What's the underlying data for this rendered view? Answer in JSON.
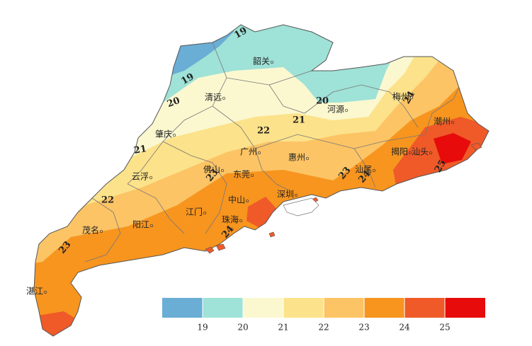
{
  "map": {
    "cities": [
      "韶关",
      "清远",
      "河源",
      "梅州",
      "潮州",
      "肇庆",
      "广州",
      "惠州",
      "揭阳",
      "汕头",
      "云浮",
      "佛山",
      "东莞",
      "汕尾",
      "中山",
      "深圳",
      "江门",
      "珠海",
      "阳江",
      "茂名",
      "湛江"
    ],
    "contour_labels": [
      19,
      19,
      20,
      20,
      21,
      21,
      22,
      22,
      23,
      23,
      23,
      24,
      24,
      24,
      25
    ],
    "legend": {
      "colors": [
        "#6aaed6",
        "#9fe2d7",
        "#fbf8d0",
        "#fce28a",
        "#fcc465",
        "#f7951f",
        "#ef5a28",
        "#e70b0b"
      ],
      "ticks": [
        19,
        20,
        21,
        22,
        23,
        24,
        25
      ]
    }
  }
}
